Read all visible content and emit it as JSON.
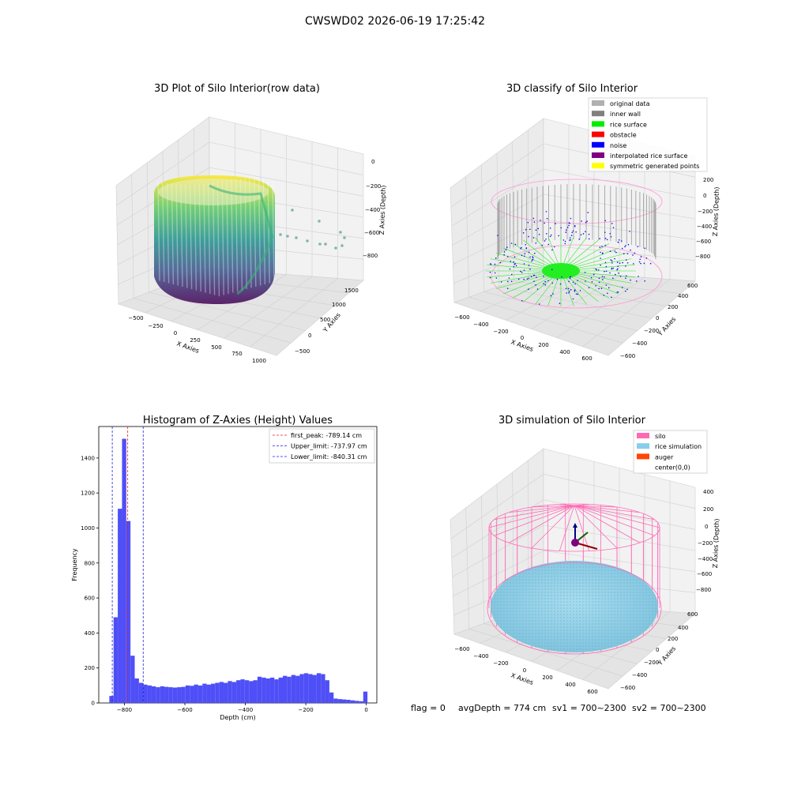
{
  "figure": {
    "suptitle": "CWSWD02 2026-06-19 17:25:42",
    "footer": {
      "flag": "flag = 0",
      "avg_depth": "avgDepth = 774 cm",
      "sv1": "sv1 = 700~2300",
      "sv2": "sv2 = 700~2300"
    }
  },
  "chart_data": [
    {
      "type": "scatter",
      "title": "3D Plot of Silo Interior(row data)",
      "xlabel": "X Axies",
      "ylabel": "Y Axies",
      "zlabel": "Z Axies (Depth)",
      "x_ticks": [
        "−500",
        "−250",
        "0",
        "250",
        "500",
        "750",
        "1000"
      ],
      "y_ticks": [
        "−500",
        "0",
        "500",
        "1000",
        "1500"
      ],
      "z_ticks": [
        "0",
        "−200",
        "−400",
        "−600",
        "−800"
      ],
      "colormap": "viridis"
    },
    {
      "type": "scatter",
      "title": "3D classify of Silo Interior",
      "xlabel": "X Axies",
      "ylabel": "Y Axies",
      "zlabel": "Z Axies (Depth)",
      "x_ticks": [
        "−600",
        "−400",
        "−200",
        "0",
        "200",
        "400",
        "600"
      ],
      "y_ticks": [
        "−600",
        "−400",
        "−200",
        "0",
        "200",
        "400",
        "600"
      ],
      "z_ticks": [
        "200",
        "0",
        "−200",
        "−400",
        "−600",
        "−800"
      ],
      "legend": [
        {
          "label": "original data",
          "color": "#b0b0b0"
        },
        {
          "label": "inner wall",
          "color": "#808080"
        },
        {
          "label": "rice surface",
          "color": "#00ee00"
        },
        {
          "label": "obstacle",
          "color": "#ff0000"
        },
        {
          "label": "noise",
          "color": "#0000ff"
        },
        {
          "label": "interpolated rice surface",
          "color": "#800080"
        },
        {
          "label": "symmetric generated points",
          "color": "#ffff00"
        }
      ],
      "legend_position": "top-right"
    },
    {
      "type": "bar",
      "title": "Histogram of Z-Axies (Height) Values",
      "xlabel": "Depth (cm)",
      "ylabel": "Frequency",
      "xlim": [
        -885,
        35
      ],
      "ylim": [
        0,
        1580
      ],
      "x_ticks": [
        -800,
        -600,
        -400,
        -200,
        0
      ],
      "x_tick_labels": [
        "−800",
        "−600",
        "−400",
        "−200",
        "0"
      ],
      "y_ticks": [
        0,
        200,
        400,
        600,
        800,
        1000,
        1200,
        1400
      ],
      "bin_width": 14,
      "bin_starts": [
        -850,
        -836,
        -822,
        -808,
        -794,
        -780,
        -766,
        -752,
        -738,
        -724,
        -710,
        -696,
        -682,
        -668,
        -654,
        -640,
        -626,
        -612,
        -598,
        -584,
        -570,
        -556,
        -542,
        -528,
        -514,
        -500,
        -486,
        -472,
        -458,
        -444,
        -430,
        -416,
        -402,
        -388,
        -374,
        -360,
        -346,
        -332,
        -318,
        -304,
        -290,
        -276,
        -262,
        -248,
        -234,
        -220,
        -206,
        -192,
        -178,
        -164,
        -150,
        -136,
        -122,
        -108,
        -94,
        -80,
        -66,
        -52,
        -38,
        -24,
        -10
      ],
      "values": [
        40,
        490,
        1110,
        1510,
        1040,
        270,
        140,
        115,
        105,
        100,
        95,
        90,
        95,
        92,
        90,
        88,
        90,
        92,
        100,
        98,
        105,
        100,
        110,
        105,
        110,
        115,
        120,
        115,
        125,
        120,
        130,
        135,
        130,
        125,
        130,
        150,
        145,
        140,
        145,
        135,
        145,
        155,
        150,
        160,
        155,
        165,
        170,
        165,
        160,
        170,
        165,
        130,
        60,
        25,
        22,
        20,
        18,
        15,
        12,
        10,
        65
      ],
      "bar_color": "#4f4ff7",
      "lines": [
        {
          "label": "first_peak: -789.14 cm",
          "x": -789.14,
          "color": "#e02020"
        },
        {
          "label": "Upper_limit: -737.97 cm",
          "x": -737.97,
          "color": "#2020e0"
        },
        {
          "label": "Lower_limit: -840.31 cm",
          "x": -840.31,
          "color": "#2020e0"
        }
      ],
      "legend_position": "top-right"
    },
    {
      "type": "scatter",
      "title": "3D simulation of Silo Interior",
      "xlabel": "X Axies",
      "ylabel": "Y Axies",
      "zlabel": "Z Axies (Depth)",
      "x_ticks": [
        "−600",
        "−400",
        "−200",
        "0",
        "200",
        "400",
        "600"
      ],
      "y_ticks": [
        "−600",
        "−400",
        "−200",
        "0",
        "200",
        "400",
        "600"
      ],
      "z_ticks": [
        "400",
        "200",
        "0",
        "−200",
        "−400",
        "−600",
        "−800"
      ],
      "legend": [
        {
          "label": "silo",
          "color": "#ff69b4"
        },
        {
          "label": "rice simulation",
          "color": "#87ceeb"
        },
        {
          "label": "auger",
          "color": "#ff4500"
        },
        {
          "label": "center(0,0)",
          "color": ""
        }
      ],
      "legend_position": "top-right"
    }
  ]
}
